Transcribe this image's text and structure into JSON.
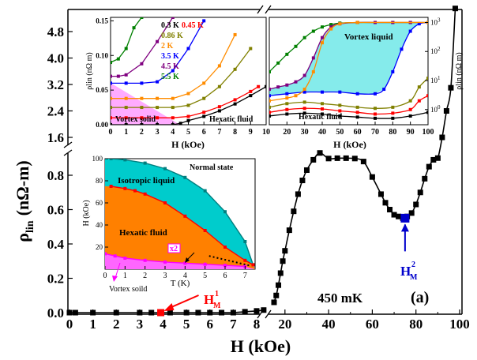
{
  "chart_data": [
    {
      "type": "line",
      "role": "main",
      "xlabel": "H (kOe)",
      "ylabel": "ρ_lin (nΩ-m)",
      "ylabel_main": "ρ",
      "ylabel_sub": "lin",
      "ylabel_unit": "(nΩ-m)",
      "x_axis": "broken: 0–8 kOe linear, then 15–100 kOe",
      "xticks_low": [
        "0",
        "1",
        "2",
        "3",
        "4",
        "5",
        "6",
        "7",
        "8"
      ],
      "xticks_high": [
        "20",
        "40",
        "60",
        "80",
        "100"
      ],
      "y_axis": "broken: 0–0.9 linear, upper segment 1.6–5",
      "yticks_low": [
        "0.0",
        "0.2",
        "0.4",
        "0.6",
        "0.8"
      ],
      "yticks_high": [
        "1.6",
        "2.4",
        "3.2",
        "4.0",
        "4.8"
      ],
      "annotation_temperature": "450 mK",
      "panel_label": "(a)",
      "marker_H1": {
        "main": "H",
        "sup": "1",
        "sub": "M",
        "x": 3.9,
        "color": "#ff0000"
      },
      "marker_H2": {
        "main": "H",
        "sup": "2",
        "sub": "M",
        "x": 75,
        "color": "#0000cc"
      },
      "series": [
        {
          "name": "",
          "color": "#000000",
          "x": [
            0,
            0.25,
            1,
            2,
            3,
            3.5,
            3.9,
            4.3,
            5,
            5.5,
            6,
            6.5,
            7,
            7.5,
            8,
            8.3,
            15,
            16,
            17,
            18,
            19,
            20,
            22,
            24,
            26,
            28,
            30,
            33,
            36,
            40,
            44,
            48,
            52,
            56,
            60,
            64,
            66,
            68,
            70,
            72,
            74,
            76,
            78,
            80,
            82,
            84,
            86,
            88,
            90,
            92,
            94,
            96,
            98
          ],
          "y": [
            0,
            0,
            0,
            0,
            0,
            0,
            0,
            0,
            0,
            0,
            0,
            0,
            0,
            0.005,
            0.01,
            0.015,
            0.06,
            0.1,
            0.16,
            0.23,
            0.3,
            0.36,
            0.48,
            0.59,
            0.69,
            0.77,
            0.83,
            0.89,
            0.93,
            0.96,
            0.97,
            0.97,
            0.96,
            0.88,
            0.79,
            0.69,
            0.64,
            0.6,
            0.57,
            0.56,
            0.55,
            0.56,
            0.58,
            0.63,
            0.7,
            0.78,
            0.85,
            0.89,
            0.9,
            1.6,
            2.4,
            3.1,
            5.5
          ]
        }
      ]
    },
    {
      "type": "line",
      "role": "inset-top-left",
      "xlabel": "H (kOe)",
      "ylabel": "ρlin (nΩ m)",
      "xlim": [
        0,
        10
      ],
      "ylim": [
        0,
        0.155
      ],
      "xticks": [
        "0",
        "1",
        "2",
        "3",
        "4",
        "5",
        "6",
        "7",
        "8",
        "9",
        "10"
      ],
      "yticks": [
        "0.00",
        "0.05",
        "0.10",
        "0.15"
      ],
      "region_labels": [
        "Vortex solid",
        "Hexatic fluid"
      ],
      "series": [
        {
          "name": "0.3 K",
          "color": "#000000",
          "x": [
            0,
            1,
            2,
            3,
            4,
            4.5,
            5,
            6,
            7,
            8,
            9,
            10
          ],
          "y": [
            0,
            0,
            0,
            0,
            0,
            0.002,
            0.006,
            0.012,
            0.02,
            0.03,
            0.042,
            0.055
          ]
        },
        {
          "name": "0.45 K",
          "color": "#ff0000",
          "x": [
            0,
            1,
            2,
            3,
            4,
            5,
            6,
            7,
            8,
            9,
            9.5
          ],
          "y": [
            0.01,
            0.01,
            0.01,
            0.01,
            0.01,
            0.012,
            0.018,
            0.026,
            0.036,
            0.048,
            0.055
          ]
        },
        {
          "name": "0.86 K",
          "color": "#808000",
          "x": [
            0,
            1,
            2,
            3,
            4,
            5,
            6,
            7,
            8,
            9
          ],
          "y": [
            0.025,
            0.025,
            0.025,
            0.025,
            0.025,
            0.028,
            0.038,
            0.055,
            0.08,
            0.11
          ]
        },
        {
          "name": "2 K",
          "color": "#ff8c00",
          "x": [
            0,
            1,
            2,
            3,
            4,
            5,
            6,
            7,
            8
          ],
          "y": [
            0.038,
            0.038,
            0.038,
            0.038,
            0.038,
            0.045,
            0.06,
            0.085,
            0.13
          ]
        },
        {
          "name": "3.5 K",
          "color": "#0000ff",
          "x": [
            0,
            1,
            2,
            3,
            4,
            5,
            6
          ],
          "y": [
            0.06,
            0.06,
            0.06,
            0.062,
            0.078,
            0.11,
            0.15
          ]
        },
        {
          "name": "4.5 K",
          "color": "#800080",
          "x": [
            0,
            0.5,
            1,
            2,
            3,
            4
          ],
          "y": [
            0.07,
            0.07,
            0.072,
            0.088,
            0.12,
            0.155
          ]
        },
        {
          "name": "5.5 K",
          "color": "#008000",
          "x": [
            0,
            0.5,
            1,
            1.5,
            2
          ],
          "y": [
            0.09,
            0.095,
            0.11,
            0.14,
            0.155
          ]
        }
      ],
      "legend": [
        {
          "label": "0.3 K",
          "color": "#000000"
        },
        {
          "label": "0.45 K",
          "color": "#ff0000"
        },
        {
          "label": "0.86 K",
          "color": "#808000"
        },
        {
          "label": "2 K",
          "color": "#ff8c00"
        },
        {
          "label": "3.5 K",
          "color": "#0000ff"
        },
        {
          "label": "4.5 K",
          "color": "#800080"
        },
        {
          "label": "5.5 K",
          "color": "#008000"
        }
      ]
    },
    {
      "type": "line",
      "role": "inset-top-right",
      "xlabel": "H (kOe)",
      "ylabel": "ρlin (nΩ m)",
      "xlim": [
        10,
        100
      ],
      "y_scale": "log",
      "ylim": [
        0.3,
        1500
      ],
      "xticks": [
        "20",
        "30",
        "40",
        "50",
        "60",
        "70",
        "80",
        "90",
        "100"
      ],
      "yticks": [
        "10^0",
        "10^1",
        "10^2",
        "10^3"
      ],
      "region_labels": [
        "Vortex liquid",
        "Hexatic fluid"
      ],
      "series": [
        {
          "name": "5.5 K",
          "color": "#008000",
          "x": [
            10,
            15,
            20,
            25,
            30,
            35,
            40,
            45,
            50,
            60,
            70,
            80,
            90,
            100
          ],
          "y": [
            20,
            40,
            80,
            150,
            300,
            500,
            700,
            850,
            950,
            1000,
            1000,
            1000,
            1000,
            1000
          ]
        },
        {
          "name": "4.5 K",
          "color": "#800080",
          "x": [
            10,
            15,
            20,
            25,
            30,
            35,
            40,
            45,
            50,
            60,
            70,
            80,
            90,
            100
          ],
          "y": [
            5,
            6,
            7,
            9,
            15,
            60,
            300,
            700,
            900,
            1000,
            1000,
            1000,
            1000,
            1000
          ]
        },
        {
          "name": "3.5 K",
          "color": "#0000ff",
          "x": [
            10,
            20,
            30,
            40,
            50,
            60,
            70,
            75,
            80,
            85,
            90,
            95,
            100
          ],
          "y": [
            3,
            3.5,
            4,
            4,
            4,
            3.5,
            3.5,
            5,
            20,
            120,
            500,
            900,
            1000
          ]
        },
        {
          "name": "2 K",
          "color": "#ff8c00",
          "x": [
            10,
            20,
            25,
            30,
            35,
            40,
            45,
            50,
            60,
            100
          ],
          "y": [
            2,
            2.5,
            3,
            5,
            20,
            200,
            600,
            900,
            1000,
            1000
          ]
        },
        {
          "name": "0.86 K",
          "color": "#808000",
          "x": [
            10,
            20,
            30,
            40,
            50,
            60,
            70,
            80,
            90,
            95,
            100
          ],
          "y": [
            1.2,
            1.6,
            1.8,
            1.6,
            1.4,
            1.2,
            1.1,
            1.2,
            2,
            6,
            12
          ]
        },
        {
          "name": "0.45 K",
          "color": "#ff0000",
          "x": [
            10,
            20,
            30,
            40,
            50,
            60,
            70,
            80,
            90,
            95,
            100
          ],
          "y": [
            0.8,
            1,
            1.1,
            1.05,
            0.9,
            0.8,
            0.7,
            0.75,
            1,
            2,
            3
          ]
        },
        {
          "name": "0.3 K",
          "color": "#000000",
          "x": [
            10,
            20,
            30,
            40,
            50,
            60,
            70,
            80,
            90,
            100
          ],
          "y": [
            0.6,
            0.7,
            0.75,
            0.7,
            0.6,
            0.55,
            0.5,
            0.5,
            0.6,
            0.8
          ]
        }
      ]
    },
    {
      "type": "line",
      "role": "inset-phase-diagram",
      "xlabel": "T (K)",
      "ylabel": "H (kOe)",
      "xlim": [
        0,
        7.5
      ],
      "ylim": [
        0,
        100
      ],
      "xticks": [
        "0",
        "1",
        "2",
        "3",
        "4",
        "5",
        "6",
        "7"
      ],
      "yticks": [
        "20",
        "40",
        "60",
        "80",
        "100"
      ],
      "region_labels": [
        "Normal state",
        "Isotropic liquid",
        "Hexatic fluid"
      ],
      "annotation_x2": "x2",
      "annotation_vortex_solid": "Vortex soild",
      "series": [
        {
          "name": "",
          "color": "#008080",
          "x": [
            0.3,
            1,
            2,
            3,
            4,
            5,
            6,
            7,
            7.4
          ],
          "y": [
            100,
            99,
            96,
            91,
            83,
            71,
            52,
            25,
            4
          ]
        },
        {
          "name": "",
          "color": "#ff0000",
          "x": [
            0.3,
            1,
            1.5,
            2,
            3,
            4,
            5,
            6,
            7,
            7.4
          ],
          "y": [
            75,
            73,
            71,
            68,
            60,
            48,
            35,
            20,
            8,
            4
          ]
        },
        {
          "name": "",
          "color": "#ff00ff",
          "x": [
            0,
            0.5,
            1,
            2,
            3,
            4,
            5,
            6,
            7
          ],
          "y": [
            14,
            12,
            10,
            8,
            6.5,
            5.5,
            4.5,
            3.5,
            2.5
          ]
        }
      ]
    }
  ]
}
